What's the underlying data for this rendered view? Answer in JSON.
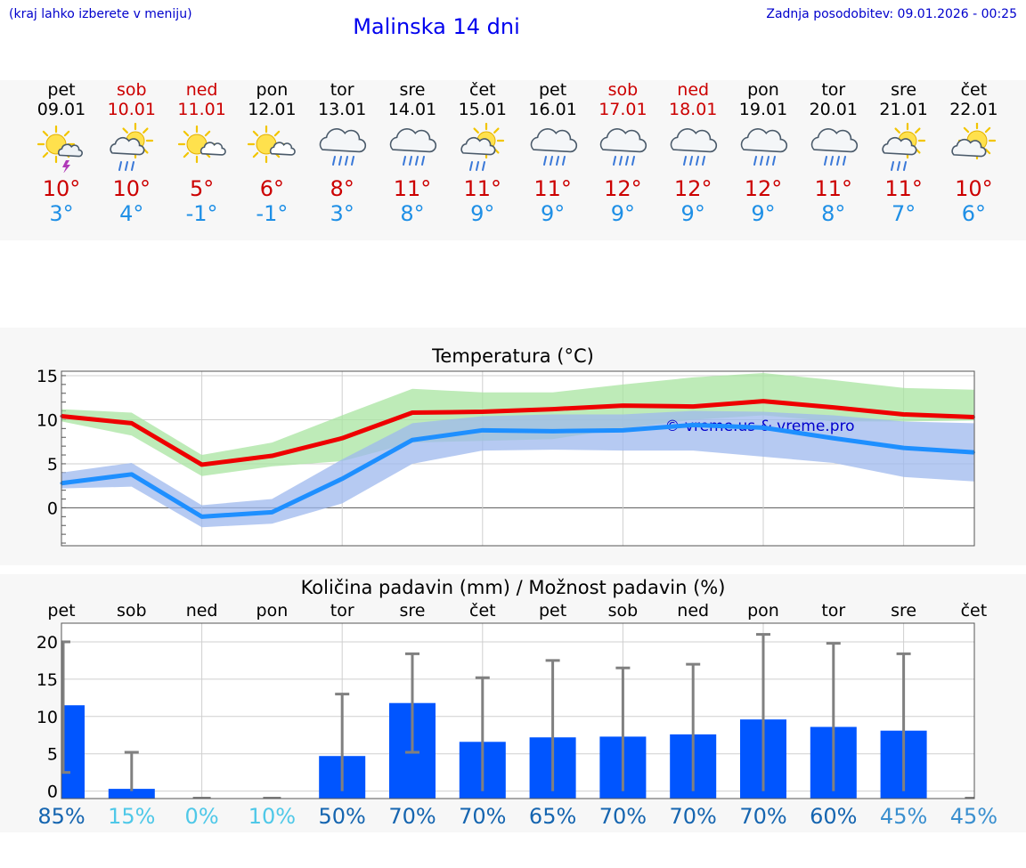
{
  "header": {
    "hint": "(kraj lahko izberete v meniju)",
    "title": "Malinska 14 dni",
    "updated": "Zadnja posodobitev: 09.01.2026 - 00:25"
  },
  "days": [
    {
      "name": "pet",
      "date": "09.01",
      "weekend": false,
      "icon": "sun-cloud-thunder-icon",
      "tmax": "10°",
      "tmin": "3°"
    },
    {
      "name": "sob",
      "date": "10.01",
      "weekend": true,
      "icon": "sun-cloud-rain-icon",
      "tmax": "10°",
      "tmin": "4°"
    },
    {
      "name": "ned",
      "date": "11.01",
      "weekend": true,
      "icon": "sun-small-cloud-icon",
      "tmax": "5°",
      "tmin": "-1°"
    },
    {
      "name": "pon",
      "date": "12.01",
      "weekend": false,
      "icon": "sun-small-cloud-icon",
      "tmax": "6°",
      "tmin": "-1°"
    },
    {
      "name": "tor",
      "date": "13.01",
      "weekend": false,
      "icon": "cloud-rain-icon",
      "tmax": "8°",
      "tmin": "3°"
    },
    {
      "name": "sre",
      "date": "14.01",
      "weekend": false,
      "icon": "cloud-rain-icon",
      "tmax": "11°",
      "tmin": "8°"
    },
    {
      "name": "čet",
      "date": "15.01",
      "weekend": false,
      "icon": "sun-cloud-rain-icon",
      "tmax": "11°",
      "tmin": "9°"
    },
    {
      "name": "pet",
      "date": "16.01",
      "weekend": false,
      "icon": "cloud-rain-icon",
      "tmax": "11°",
      "tmin": "9°"
    },
    {
      "name": "sob",
      "date": "17.01",
      "weekend": true,
      "icon": "cloud-rain-icon",
      "tmax": "12°",
      "tmin": "9°"
    },
    {
      "name": "ned",
      "date": "18.01",
      "weekend": true,
      "icon": "cloud-rain-icon",
      "tmax": "12°",
      "tmin": "9°"
    },
    {
      "name": "pon",
      "date": "19.01",
      "weekend": false,
      "icon": "cloud-rain-icon",
      "tmax": "12°",
      "tmin": "9°"
    },
    {
      "name": "tor",
      "date": "20.01",
      "weekend": false,
      "icon": "cloud-rain-icon",
      "tmax": "11°",
      "tmin": "8°"
    },
    {
      "name": "sre",
      "date": "21.01",
      "weekend": false,
      "icon": "sun-cloud-rain-icon",
      "tmax": "11°",
      "tmin": "7°"
    },
    {
      "name": "čet",
      "date": "22.01",
      "weekend": false,
      "icon": "sun-cloud-icon",
      "tmax": "10°",
      "tmin": "6°"
    }
  ],
  "colors": {
    "max_line": "#ee0000",
    "min_line": "#1e8fff",
    "max_band": "#a8e4a0",
    "min_band": "#9db8ee",
    "overlap_band": "#7fc6a6",
    "bar": "#0055ff",
    "whisker": "#808080",
    "weekend": "#cc0000",
    "pct_dark": "#1565b0",
    "pct_light": "#4fc8e8"
  },
  "chart_data": [
    {
      "type": "line",
      "title": "Temperatura (°C)",
      "watermark": "© vreme.us & vreme.pro",
      "x": [
        0,
        1,
        2,
        3,
        4,
        5,
        6,
        7,
        8,
        9,
        10,
        11,
        12,
        13
      ],
      "ylim": [
        -4.3,
        15.5
      ],
      "yticks": [
        0,
        5,
        10,
        15
      ],
      "series": [
        {
          "name": "max",
          "values": [
            10.4,
            9.6,
            4.9,
            5.9,
            7.9,
            10.8,
            10.9,
            11.2,
            11.6,
            11.5,
            12.1,
            11.4,
            10.6,
            10.3
          ],
          "band_low": [
            9.8,
            8.2,
            3.6,
            4.7,
            5.3,
            7.4,
            7.6,
            7.8,
            9.0,
            10.0,
            10.5,
            9.8,
            9.8,
            9.9
          ],
          "band_high": [
            11.2,
            10.8,
            6.0,
            7.4,
            10.5,
            13.5,
            13.1,
            13.1,
            14.0,
            14.8,
            15.3,
            14.5,
            13.6,
            13.4
          ]
        },
        {
          "name": "min",
          "values": [
            2.8,
            3.8,
            -1.0,
            -0.5,
            3.3,
            7.7,
            8.8,
            8.7,
            8.8,
            9.4,
            9.1,
            7.9,
            6.8,
            6.3
          ],
          "band_low": [
            2.2,
            2.4,
            -2.2,
            -1.8,
            0.5,
            5.0,
            6.5,
            6.6,
            6.5,
            6.5,
            5.8,
            5.1,
            3.5,
            3.0
          ],
          "band_high": [
            4.0,
            5.1,
            0.3,
            1.0,
            5.5,
            9.6,
            10.4,
            10.6,
            10.6,
            11.0,
            10.9,
            10.5,
            9.8,
            9.6
          ]
        }
      ]
    },
    {
      "type": "bar",
      "title": "Količina padavin (mm) / Možnost padavin (%)",
      "categories": [
        "pet",
        "sob",
        "ned",
        "pon",
        "tor",
        "sre",
        "čet",
        "pet",
        "sob",
        "ned",
        "pon",
        "tor",
        "sre",
        "čet"
      ],
      "ylim": [
        -1,
        22.5
      ],
      "yticks": [
        0,
        5,
        10,
        15,
        20
      ],
      "values": [
        11.5,
        0.3,
        0,
        0,
        4.7,
        11.8,
        6.6,
        7.2,
        7.3,
        7.6,
        9.6,
        8.6,
        8.1,
        0
      ],
      "err_low": [
        2.5,
        0,
        0,
        0,
        0,
        5.2,
        0,
        0,
        0,
        0,
        0,
        0,
        0,
        0
      ],
      "err_high": [
        20.0,
        5.2,
        0,
        0,
        13.0,
        18.4,
        15.2,
        17.5,
        16.5,
        17.0,
        21.0,
        19.8,
        18.4,
        0
      ],
      "probability": [
        "85%",
        "15%",
        "0%",
        "10%",
        "50%",
        "70%",
        "70%",
        "65%",
        "70%",
        "70%",
        "70%",
        "60%",
        "45%",
        "45%"
      ]
    }
  ]
}
